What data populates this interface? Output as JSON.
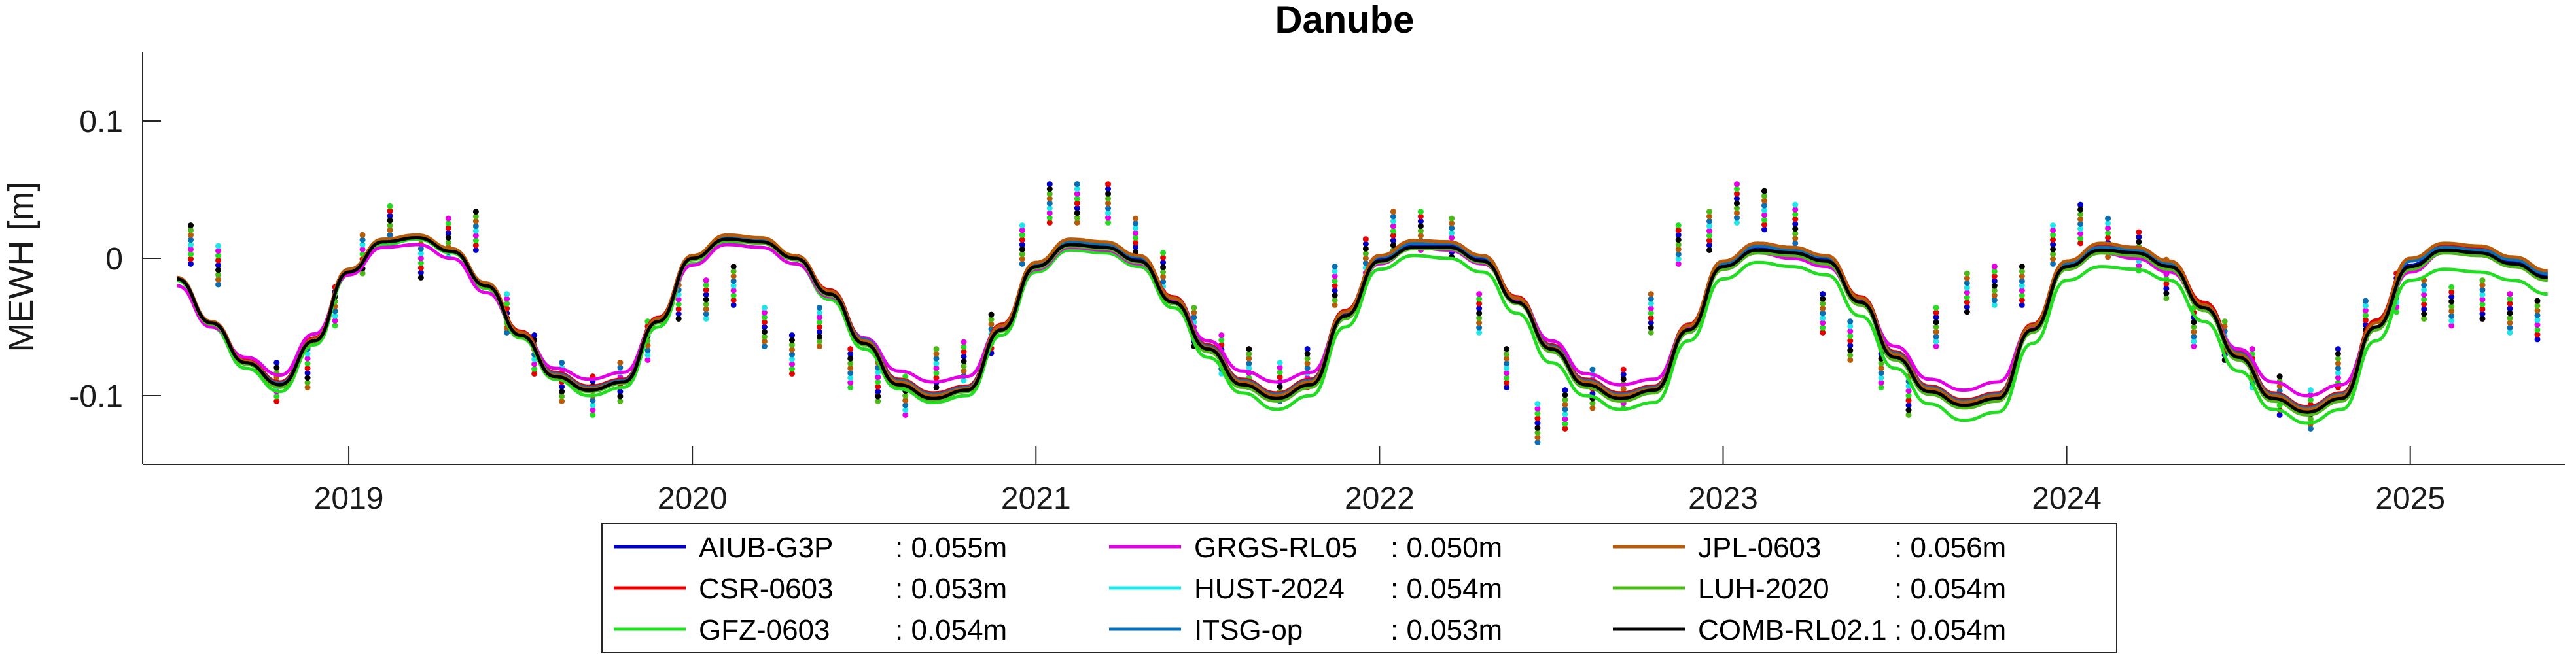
{
  "chart_data": {
    "type": "line",
    "title": "Danube",
    "xlabel": "",
    "ylabel": "MEWH [m]",
    "xlim": [
      2018.4,
      2025.45
    ],
    "ylim": [
      -0.15,
      0.15
    ],
    "x_ticks": [
      2019,
      2020,
      2021,
      2022,
      2023,
      2024,
      2025
    ],
    "x_tick_labels": [
      "2019",
      "2020",
      "2021",
      "2022",
      "2023",
      "2024",
      "2025"
    ],
    "y_ticks": [
      -0.1,
      0,
      0.1
    ],
    "y_tick_labels": [
      "-0.1",
      "0",
      "0.1"
    ],
    "grid": false,
    "legend_position": "bottom-outside",
    "x_samples": [
      2018.5,
      2018.6,
      2018.7,
      2018.8,
      2018.9,
      2019.0,
      2019.1,
      2019.2,
      2019.3,
      2019.4,
      2019.5,
      2019.6,
      2019.7,
      2019.8,
      2019.9,
      2020.0,
      2020.1,
      2020.2,
      2020.3,
      2020.4,
      2020.5,
      2020.6,
      2020.7,
      2020.8,
      2020.9,
      2021.0,
      2021.1,
      2021.2,
      2021.3,
      2021.4,
      2021.5,
      2021.6,
      2021.7,
      2021.8,
      2021.9,
      2022.0,
      2022.1,
      2022.2,
      2022.3,
      2022.4,
      2022.5,
      2022.6,
      2022.7,
      2022.8,
      2022.9,
      2023.0,
      2023.1,
      2023.2,
      2023.3,
      2023.4,
      2023.5,
      2023.6,
      2023.7,
      2023.8,
      2023.9,
      2024.0,
      2024.1,
      2024.2,
      2024.3,
      2024.4,
      2024.5,
      2024.6,
      2024.7,
      2024.8,
      2024.9,
      2025.0,
      2025.1,
      2025.2,
      2025.3,
      2025.4
    ],
    "series": [
      {
        "name": "AIUB-G3P",
        "rmse_label": ": 0.055m",
        "color": "#0000cc",
        "values": [
          -0.015,
          -0.047,
          -0.075,
          -0.092,
          -0.06,
          -0.01,
          0.012,
          0.015,
          0.005,
          -0.02,
          -0.055,
          -0.085,
          -0.095,
          -0.09,
          -0.045,
          0.0,
          0.015,
          0.013,
          0.0,
          -0.025,
          -0.06,
          -0.09,
          -0.1,
          -0.095,
          -0.05,
          -0.005,
          0.012,
          0.01,
          0.0,
          -0.03,
          -0.065,
          -0.09,
          -0.1,
          -0.09,
          -0.04,
          0.0,
          0.01,
          0.01,
          0.0,
          -0.03,
          -0.065,
          -0.09,
          -0.1,
          -0.095,
          -0.05,
          -0.005,
          0.008,
          0.005,
          0.0,
          -0.03,
          -0.07,
          -0.095,
          -0.105,
          -0.1,
          -0.05,
          -0.005,
          0.008,
          0.005,
          -0.005,
          -0.035,
          -0.07,
          -0.1,
          -0.11,
          -0.1,
          -0.05,
          -0.005,
          0.008,
          0.005,
          -0.002,
          -0.012
        ]
      },
      {
        "name": "CSR-0603",
        "rmse_label": ": 0.053m",
        "color": "#e60000",
        "values": [
          -0.014,
          -0.046,
          -0.074,
          -0.09,
          -0.058,
          -0.008,
          0.013,
          0.016,
          0.006,
          -0.018,
          -0.053,
          -0.083,
          -0.093,
          -0.088,
          -0.043,
          0.002,
          0.016,
          0.014,
          0.002,
          -0.023,
          -0.058,
          -0.088,
          -0.098,
          -0.093,
          -0.048,
          -0.003,
          0.013,
          0.011,
          0.002,
          -0.028,
          -0.063,
          -0.088,
          -0.098,
          -0.088,
          -0.038,
          0.002,
          0.013,
          0.012,
          0.002,
          -0.028,
          -0.063,
          -0.088,
          -0.098,
          -0.093,
          -0.048,
          -0.002,
          0.011,
          0.008,
          0.002,
          -0.028,
          -0.068,
          -0.093,
          -0.103,
          -0.098,
          -0.048,
          -0.002,
          0.01,
          0.008,
          -0.002,
          -0.032,
          -0.068,
          -0.098,
          -0.108,
          -0.098,
          -0.045,
          0.0,
          0.01,
          0.008,
          0.0,
          -0.01
        ]
      },
      {
        "name": "GFZ-0603",
        "rmse_label": ": 0.054m",
        "color": "#22dd22",
        "values": [
          -0.016,
          -0.05,
          -0.08,
          -0.097,
          -0.063,
          -0.012,
          0.01,
          0.014,
          0.004,
          -0.022,
          -0.058,
          -0.088,
          -0.1,
          -0.094,
          -0.05,
          -0.004,
          0.011,
          0.008,
          -0.004,
          -0.03,
          -0.066,
          -0.095,
          -0.105,
          -0.1,
          -0.056,
          -0.01,
          0.006,
          0.004,
          -0.006,
          -0.036,
          -0.072,
          -0.098,
          -0.11,
          -0.1,
          -0.05,
          -0.008,
          0.002,
          0.0,
          -0.01,
          -0.04,
          -0.076,
          -0.1,
          -0.11,
          -0.105,
          -0.06,
          -0.015,
          -0.003,
          -0.006,
          -0.012,
          -0.042,
          -0.08,
          -0.106,
          -0.118,
          -0.112,
          -0.062,
          -0.016,
          -0.006,
          -0.008,
          -0.016,
          -0.046,
          -0.082,
          -0.11,
          -0.12,
          -0.11,
          -0.06,
          -0.016,
          -0.008,
          -0.01,
          -0.016,
          -0.026
        ]
      },
      {
        "name": "GRGS-RL05",
        "rmse_label": ": 0.050m",
        "color": "#e600e6",
        "values": [
          -0.02,
          -0.05,
          -0.072,
          -0.085,
          -0.055,
          -0.012,
          0.008,
          0.01,
          0.0,
          -0.025,
          -0.055,
          -0.08,
          -0.088,
          -0.083,
          -0.045,
          -0.005,
          0.01,
          0.008,
          -0.004,
          -0.028,
          -0.058,
          -0.082,
          -0.09,
          -0.086,
          -0.05,
          -0.008,
          0.008,
          0.006,
          -0.004,
          -0.03,
          -0.06,
          -0.082,
          -0.09,
          -0.083,
          -0.042,
          -0.004,
          0.008,
          0.006,
          -0.004,
          -0.03,
          -0.06,
          -0.084,
          -0.092,
          -0.088,
          -0.05,
          -0.008,
          0.004,
          0.0,
          -0.006,
          -0.032,
          -0.064,
          -0.088,
          -0.096,
          -0.09,
          -0.05,
          -0.008,
          0.004,
          0.0,
          -0.01,
          -0.036,
          -0.066,
          -0.09,
          -0.1,
          -0.092,
          -0.05,
          -0.01,
          0.004,
          0.002,
          -0.006,
          -0.015
        ]
      },
      {
        "name": "HUST-2024",
        "rmse_label": ": 0.054m",
        "color": "#22e6e6",
        "values": [
          -0.015,
          -0.047,
          -0.076,
          -0.092,
          -0.06,
          -0.01,
          0.012,
          0.015,
          0.005,
          -0.02,
          -0.056,
          -0.086,
          -0.096,
          -0.09,
          -0.046,
          0.0,
          0.014,
          0.012,
          0.0,
          -0.026,
          -0.062,
          -0.092,
          -0.102,
          -0.096,
          -0.052,
          -0.006,
          0.01,
          0.008,
          -0.002,
          -0.032,
          -0.066,
          -0.092,
          -0.102,
          -0.092,
          -0.042,
          -0.002,
          0.008,
          0.008,
          -0.002,
          -0.032,
          -0.066,
          -0.092,
          -0.102,
          -0.096,
          -0.052,
          -0.006,
          0.006,
          0.004,
          -0.002,
          -0.032,
          -0.072,
          -0.097,
          -0.107,
          -0.102,
          -0.052,
          -0.006,
          0.006,
          0.004,
          -0.006,
          -0.036,
          -0.072,
          -0.102,
          -0.112,
          -0.102,
          -0.05,
          -0.006,
          0.006,
          0.004,
          -0.004,
          -0.014
        ]
      },
      {
        "name": "ITSG-op",
        "rmse_label": ": 0.053m",
        "color": "#0a6eb4",
        "values": [
          -0.015,
          -0.047,
          -0.075,
          -0.091,
          -0.059,
          -0.009,
          0.012,
          0.015,
          0.005,
          -0.019,
          -0.054,
          -0.084,
          -0.094,
          -0.089,
          -0.044,
          0.001,
          0.015,
          0.013,
          0.001,
          -0.024,
          -0.059,
          -0.089,
          -0.099,
          -0.094,
          -0.049,
          -0.004,
          0.012,
          0.01,
          0.001,
          -0.029,
          -0.064,
          -0.089,
          -0.099,
          -0.089,
          -0.039,
          0.001,
          0.011,
          0.011,
          0.001,
          -0.029,
          -0.064,
          -0.089,
          -0.099,
          -0.094,
          -0.049,
          -0.004,
          0.009,
          0.006,
          0.001,
          -0.029,
          -0.069,
          -0.094,
          -0.104,
          -0.099,
          -0.049,
          -0.004,
          0.008,
          0.006,
          -0.004,
          -0.034,
          -0.069,
          -0.099,
          -0.109,
          -0.099,
          -0.047,
          -0.002,
          0.008,
          0.006,
          -0.001,
          -0.011
        ]
      },
      {
        "name": "JPL-0603",
        "rmse_label": ": 0.056m",
        "color": "#b85c0a",
        "values": [
          -0.014,
          -0.046,
          -0.075,
          -0.092,
          -0.059,
          -0.008,
          0.014,
          0.017,
          0.007,
          -0.018,
          -0.054,
          -0.085,
          -0.095,
          -0.09,
          -0.044,
          0.002,
          0.017,
          0.015,
          0.002,
          -0.024,
          -0.06,
          -0.09,
          -0.1,
          -0.095,
          -0.049,
          -0.003,
          0.014,
          0.012,
          0.002,
          -0.029,
          -0.065,
          -0.09,
          -0.1,
          -0.09,
          -0.039,
          0.002,
          0.013,
          0.012,
          0.002,
          -0.029,
          -0.065,
          -0.09,
          -0.1,
          -0.095,
          -0.049,
          -0.002,
          0.011,
          0.008,
          0.002,
          -0.029,
          -0.07,
          -0.095,
          -0.105,
          -0.1,
          -0.049,
          -0.002,
          0.011,
          0.008,
          -0.002,
          -0.034,
          -0.07,
          -0.1,
          -0.11,
          -0.1,
          -0.047,
          0.0,
          0.011,
          0.009,
          0.001,
          -0.009
        ]
      },
      {
        "name": "LUH-2020",
        "rmse_label": ": 0.054m",
        "color": "#4db81a",
        "values": [
          -0.015,
          -0.048,
          -0.077,
          -0.094,
          -0.061,
          -0.01,
          0.012,
          0.015,
          0.005,
          -0.021,
          -0.057,
          -0.087,
          -0.097,
          -0.091,
          -0.047,
          -0.001,
          0.013,
          0.011,
          -0.001,
          -0.027,
          -0.063,
          -0.093,
          -0.103,
          -0.097,
          -0.053,
          -0.007,
          0.009,
          0.007,
          -0.003,
          -0.033,
          -0.068,
          -0.094,
          -0.104,
          -0.094,
          -0.044,
          -0.003,
          0.007,
          0.007,
          -0.003,
          -0.033,
          -0.068,
          -0.094,
          -0.104,
          -0.098,
          -0.054,
          -0.008,
          0.004,
          0.002,
          -0.004,
          -0.034,
          -0.074,
          -0.099,
          -0.109,
          -0.104,
          -0.054,
          -0.008,
          0.004,
          0.002,
          -0.008,
          -0.038,
          -0.074,
          -0.104,
          -0.114,
          -0.104,
          -0.052,
          -0.008,
          0.004,
          0.002,
          -0.006,
          -0.016
        ]
      },
      {
        "name": "COMB-RL02.1",
        "rmse_label": ": 0.054m",
        "color": "#000000",
        "values": [
          -0.015,
          -0.047,
          -0.076,
          -0.092,
          -0.06,
          -0.01,
          0.012,
          0.015,
          0.005,
          -0.02,
          -0.056,
          -0.086,
          -0.096,
          -0.09,
          -0.046,
          0.0,
          0.014,
          0.012,
          0.0,
          -0.026,
          -0.062,
          -0.092,
          -0.102,
          -0.096,
          -0.052,
          -0.006,
          0.01,
          0.008,
          -0.002,
          -0.032,
          -0.066,
          -0.092,
          -0.102,
          -0.092,
          -0.042,
          -0.002,
          0.008,
          0.008,
          -0.002,
          -0.032,
          -0.066,
          -0.092,
          -0.102,
          -0.096,
          -0.052,
          -0.006,
          0.006,
          0.004,
          -0.002,
          -0.032,
          -0.072,
          -0.097,
          -0.107,
          -0.102,
          -0.052,
          -0.006,
          0.006,
          0.004,
          -0.006,
          -0.036,
          -0.072,
          -0.102,
          -0.112,
          -0.102,
          -0.05,
          -0.006,
          0.006,
          0.004,
          -0.004,
          -0.014
        ]
      }
    ],
    "scatter_x": [
      2018.54,
      2018.62,
      2018.79,
      2018.88,
      2018.96,
      2019.04,
      2019.12,
      2019.21,
      2019.29,
      2019.37,
      2019.46,
      2019.54,
      2019.62,
      2019.71,
      2019.79,
      2019.87,
      2019.96,
      2020.04,
      2020.12,
      2020.21,
      2020.29,
      2020.37,
      2020.46,
      2020.54,
      2020.62,
      2020.71,
      2020.79,
      2020.87,
      2020.96,
      2021.04,
      2021.12,
      2021.21,
      2021.29,
      2021.37,
      2021.46,
      2021.54,
      2021.62,
      2021.71,
      2021.79,
      2021.87,
      2021.96,
      2022.04,
      2022.12,
      2022.21,
      2022.29,
      2022.37,
      2022.46,
      2022.54,
      2022.62,
      2022.71,
      2022.79,
      2022.87,
      2022.96,
      2023.04,
      2023.12,
      2023.21,
      2023.29,
      2023.37,
      2023.46,
      2023.54,
      2023.62,
      2023.71,
      2023.79,
      2023.87,
      2023.96,
      2024.04,
      2024.12,
      2024.21,
      2024.29,
      2024.37,
      2024.46,
      2024.54,
      2024.62,
      2024.71,
      2024.79,
      2024.87,
      2024.96,
      2025.04,
      2025.12,
      2025.21,
      2025.29,
      2025.37
    ],
    "scatter_center": [
      0.01,
      -0.005,
      -0.09,
      -0.08,
      -0.035,
      0.003,
      0.024,
      0.0,
      0.015,
      0.02,
      -0.04,
      -0.07,
      -0.09,
      -0.1,
      -0.09,
      -0.06,
      -0.03,
      -0.03,
      -0.02,
      -0.05,
      -0.07,
      -0.05,
      -0.08,
      -0.09,
      -0.1,
      -0.08,
      -0.075,
      -0.055,
      0.01,
      0.04,
      0.04,
      0.04,
      0.015,
      -0.01,
      -0.05,
      -0.07,
      -0.08,
      -0.09,
      -0.08,
      -0.02,
      0.0,
      0.02,
      0.02,
      0.015,
      -0.04,
      -0.08,
      -0.12,
      -0.11,
      -0.095,
      -0.095,
      -0.04,
      0.01,
      0.02,
      0.04,
      0.035,
      0.025,
      -0.04,
      -0.06,
      -0.08,
      -0.1,
      -0.05,
      -0.025,
      -0.02,
      -0.02,
      0.01,
      0.025,
      0.015,
      0.005,
      -0.015,
      -0.05,
      -0.06,
      -0.08,
      -0.1,
      -0.11,
      -0.08,
      -0.045,
      -0.025,
      -0.03,
      -0.035,
      -0.03,
      -0.04,
      -0.045
    ]
  },
  "legend": {
    "entries": [
      {
        "name": "AIUB-G3P",
        "value": ": 0.055m",
        "color": "#0000cc"
      },
      {
        "name": "CSR-0603",
        "value": ": 0.053m",
        "color": "#e60000"
      },
      {
        "name": "GFZ-0603",
        "value": ": 0.054m",
        "color": "#22dd22"
      },
      {
        "name": "GRGS-RL05",
        "value": ": 0.050m",
        "color": "#e600e6"
      },
      {
        "name": "HUST-2024",
        "value": ": 0.054m",
        "color": "#22e6e6"
      },
      {
        "name": "ITSG-op",
        "value": ": 0.053m",
        "color": "#0a6eb4"
      },
      {
        "name": "JPL-0603",
        "value": ": 0.056m",
        "color": "#b85c0a"
      },
      {
        "name": "LUH-2020",
        "value": ": 0.054m",
        "color": "#4db81a"
      },
      {
        "name": "COMB-RL02.1",
        "value": ": 0.054m",
        "color": "#000000"
      }
    ]
  }
}
